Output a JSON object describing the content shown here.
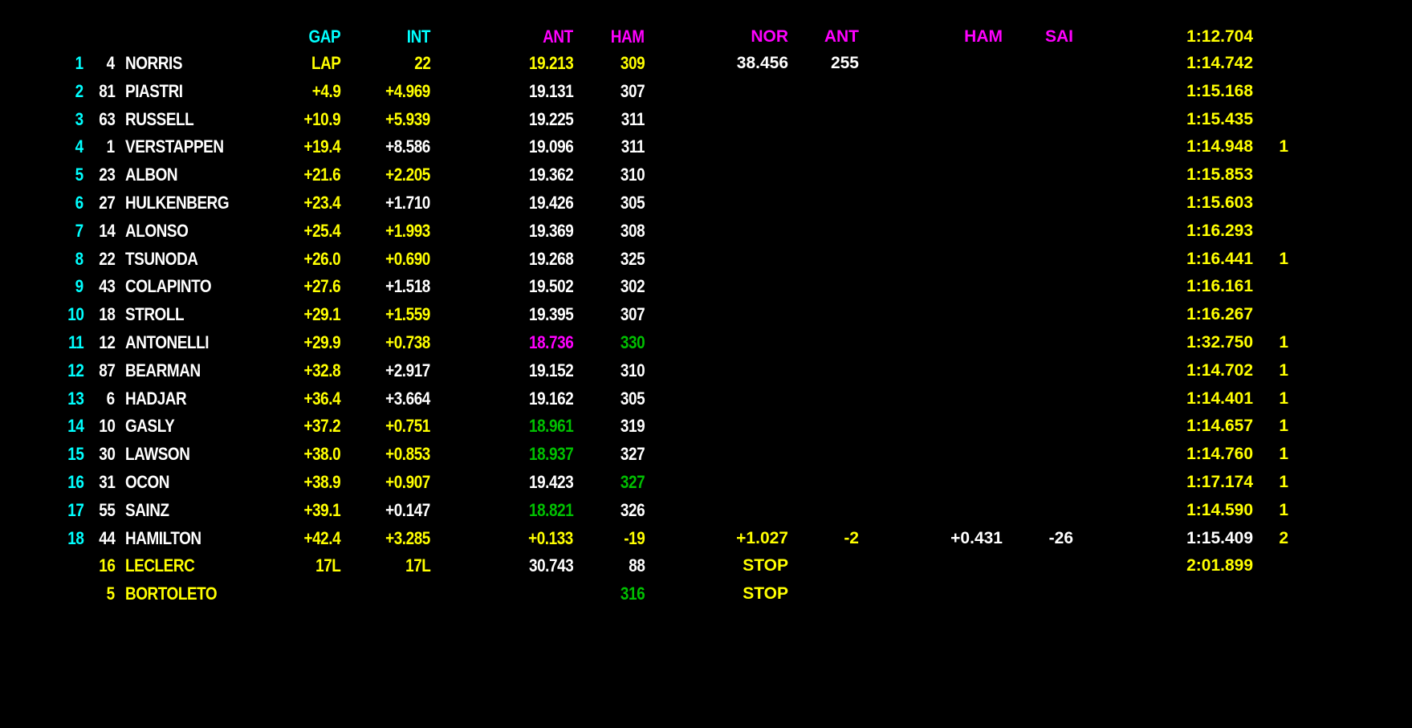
{
  "colors": {
    "cyan": "#00ffff",
    "yellow": "#ffff00",
    "white": "#ffffff",
    "magenta": "#ff00ff",
    "green": "#00c000"
  },
  "header": {
    "gap": "GAP",
    "int": "INT",
    "ant": "ANT",
    "ham": "HAM",
    "nor": "NOR",
    "ant2": "ANT",
    "ham2": "HAM",
    "sai": "SAI",
    "lap": "1:12.704"
  },
  "header_colors": {
    "gap": "cyan",
    "int": "cyan",
    "ant": "magenta",
    "ham": "magenta",
    "nor": "magenta",
    "ant2": "magenta",
    "ham2": "magenta",
    "sai": "magenta",
    "lap": "yellow"
  },
  "defaults": {
    "pos": "cyan",
    "num": "white",
    "name": "white",
    "gap": "yellow",
    "int": "white",
    "ant": "white",
    "ham": "white",
    "nor": "white",
    "ant2": "white",
    "ham2": "white",
    "sai": "white",
    "lap": "yellow",
    "pits": "yellow"
  },
  "rows": [
    {
      "pos": "1",
      "num": "4",
      "name": "NORRIS",
      "gap": "LAP",
      "int": "22",
      "ant": "19.213",
      "ham": "309",
      "nor": "38.456",
      "ant2": "255",
      "lap": "1:14.742",
      "c": {
        "int": "yellow",
        "ant": "yellow",
        "ham": "yellow"
      }
    },
    {
      "pos": "2",
      "num": "81",
      "name": "PIASTRI",
      "gap": "+4.9",
      "int": "+4.969",
      "ant": "19.131",
      "ham": "307",
      "lap": "1:15.168",
      "c": {
        "int": "yellow"
      }
    },
    {
      "pos": "3",
      "num": "63",
      "name": "RUSSELL",
      "gap": "+10.9",
      "int": "+5.939",
      "ant": "19.225",
      "ham": "311",
      "lap": "1:15.435",
      "c": {
        "int": "yellow"
      }
    },
    {
      "pos": "4",
      "num": "1",
      "name": "VERSTAPPEN",
      "gap": "+19.4",
      "int": "+8.586",
      "ant": "19.096",
      "ham": "311",
      "lap": "1:14.948",
      "pits": "1"
    },
    {
      "pos": "5",
      "num": "23",
      "name": "ALBON",
      "gap": "+21.6",
      "int": "+2.205",
      "ant": "19.362",
      "ham": "310",
      "lap": "1:15.853",
      "c": {
        "int": "yellow"
      }
    },
    {
      "pos": "6",
      "num": "27",
      "name": "HULKENBERG",
      "gap": "+23.4",
      "int": "+1.710",
      "ant": "19.426",
      "ham": "305",
      "lap": "1:15.603"
    },
    {
      "pos": "7",
      "num": "14",
      "name": "ALONSO",
      "gap": "+25.4",
      "int": "+1.993",
      "ant": "19.369",
      "ham": "308",
      "lap": "1:16.293",
      "c": {
        "int": "yellow"
      }
    },
    {
      "pos": "8",
      "num": "22",
      "name": "TSUNODA",
      "gap": "+26.0",
      "int": "+0.690",
      "ant": "19.268",
      "ham": "325",
      "lap": "1:16.441",
      "pits": "1",
      "c": {
        "int": "yellow"
      }
    },
    {
      "pos": "9",
      "num": "43",
      "name": "COLAPINTO",
      "gap": "+27.6",
      "int": "+1.518",
      "ant": "19.502",
      "ham": "302",
      "lap": "1:16.161"
    },
    {
      "pos": "10",
      "num": "18",
      "name": "STROLL",
      "gap": "+29.1",
      "int": "+1.559",
      "ant": "19.395",
      "ham": "307",
      "lap": "1:16.267",
      "c": {
        "int": "yellow"
      }
    },
    {
      "pos": "11",
      "num": "12",
      "name": "ANTONELLI",
      "gap": "+29.9",
      "int": "+0.738",
      "ant": "18.736",
      "ham": "330",
      "lap": "1:32.750",
      "pits": "1",
      "c": {
        "int": "yellow",
        "ant": "magenta",
        "ham": "green"
      }
    },
    {
      "pos": "12",
      "num": "87",
      "name": "BEARMAN",
      "gap": "+32.8",
      "int": "+2.917",
      "ant": "19.152",
      "ham": "310",
      "lap": "1:14.702",
      "pits": "1"
    },
    {
      "pos": "13",
      "num": "6",
      "name": "HADJAR",
      "gap": "+36.4",
      "int": "+3.664",
      "ant": "19.162",
      "ham": "305",
      "lap": "1:14.401",
      "pits": "1"
    },
    {
      "pos": "14",
      "num": "10",
      "name": "GASLY",
      "gap": "+37.2",
      "int": "+0.751",
      "ant": "18.961",
      "ham": "319",
      "lap": "1:14.657",
      "pits": "1",
      "c": {
        "int": "yellow",
        "ant": "green"
      }
    },
    {
      "pos": "15",
      "num": "30",
      "name": "LAWSON",
      "gap": "+38.0",
      "int": "+0.853",
      "ant": "18.937",
      "ham": "327",
      "lap": "1:14.760",
      "pits": "1",
      "c": {
        "int": "yellow",
        "ant": "green"
      }
    },
    {
      "pos": "16",
      "num": "31",
      "name": "OCON",
      "gap": "+38.9",
      "int": "+0.907",
      "ant": "19.423",
      "ham": "327",
      "lap": "1:17.174",
      "pits": "1",
      "c": {
        "int": "yellow",
        "ham": "green"
      }
    },
    {
      "pos": "17",
      "num": "55",
      "name": "SAINZ",
      "gap": "+39.1",
      "int": "+0.147",
      "ant": "18.821",
      "ham": "326",
      "lap": "1:14.590",
      "pits": "1",
      "c": {
        "ant": "green"
      }
    },
    {
      "pos": "18",
      "num": "44",
      "name": "HAMILTON",
      "gap": "+42.4",
      "int": "+3.285",
      "ant": "+0.133",
      "ham": "-19",
      "nor": "+1.027",
      "ant2": "-2",
      "ham2": "+0.431",
      "sai": "-26",
      "lap": "1:15.409",
      "pits": "2",
      "c": {
        "int": "yellow",
        "ant": "yellow",
        "ham": "yellow",
        "nor": "yellow",
        "ant2": "yellow",
        "lap": "white"
      }
    },
    {
      "pos": "",
      "num": "16",
      "name": "LECLERC",
      "gap": "17L",
      "int": "17L",
      "ant": "30.743",
      "ham": "88",
      "nor": "STOP",
      "lap": "2:01.899",
      "c": {
        "num": "yellow",
        "name": "yellow",
        "int": "yellow",
        "nor": "yellow"
      }
    },
    {
      "pos": "",
      "num": "5",
      "name": "BORTOLETO",
      "ham": "316",
      "nor": "STOP",
      "c": {
        "num": "yellow",
        "name": "yellow",
        "ham": "green",
        "nor": "yellow"
      }
    }
  ]
}
